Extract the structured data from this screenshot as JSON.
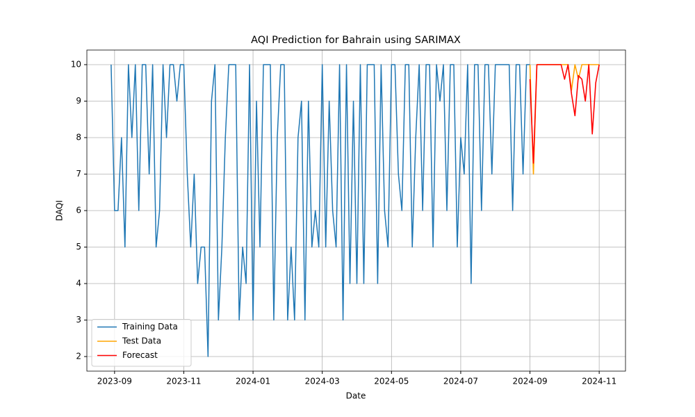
{
  "chart_data": {
    "type": "line",
    "title": "AQI Prediction for Bahrain using SARIMAX",
    "x_label": "Date",
    "y_label": "DAQI",
    "xlim": [
      -0.8,
      14.76
    ],
    "ylim": [
      1.6,
      10.4
    ],
    "xticks": [
      {
        "value": 0,
        "label": "2023-09"
      },
      {
        "value": 2,
        "label": "2023-11"
      },
      {
        "value": 4,
        "label": "2024-01"
      },
      {
        "value": 6,
        "label": "2024-03"
      },
      {
        "value": 8,
        "label": "2024-05"
      },
      {
        "value": 10,
        "label": "2024-07"
      },
      {
        "value": 12,
        "label": "2024-09"
      },
      {
        "value": 14,
        "label": "2024-11"
      }
    ],
    "yticks": [
      2,
      3,
      4,
      5,
      6,
      7,
      8,
      9,
      10
    ],
    "grid": true,
    "legend": "lower left",
    "series": [
      {
        "name": "Training Data",
        "color": "#1f77b4",
        "x": [
          -0.1,
          0,
          0.1,
          0.2,
          0.3,
          0.4,
          0.5,
          0.6,
          0.7,
          0.8,
          0.9,
          1,
          1.1,
          1.2,
          1.3,
          1.4,
          1.5,
          1.6,
          1.7,
          1.8,
          1.9,
          2,
          2.1,
          2.2,
          2.3,
          2.4,
          2.5,
          2.6,
          2.7,
          2.8,
          2.9,
          3,
          3.1,
          3.2,
          3.3,
          3.4,
          3.5,
          3.6,
          3.7,
          3.8,
          3.9,
          4,
          4.1,
          4.2,
          4.3,
          4.4,
          4.5,
          4.6,
          4.7,
          4.8,
          4.9,
          5,
          5.1,
          5.2,
          5.3,
          5.4,
          5.5,
          5.6,
          5.7,
          5.8,
          5.9,
          6,
          6.1,
          6.2,
          6.3,
          6.4,
          6.5,
          6.6,
          6.7,
          6.8,
          6.9,
          7,
          7.1,
          7.2,
          7.3,
          7.4,
          7.5,
          7.6,
          7.7,
          7.8,
          7.9,
          8,
          8.1,
          8.2,
          8.3,
          8.4,
          8.5,
          8.6,
          8.7,
          8.8,
          8.9,
          9,
          9.1,
          9.2,
          9.3,
          9.4,
          9.5,
          9.6,
          9.7,
          9.8,
          9.9,
          10,
          10.1,
          10.2,
          10.3,
          10.4,
          10.5,
          10.6,
          10.7,
          10.8,
          10.9,
          11,
          11.1,
          11.2,
          11.3,
          11.4,
          11.5,
          11.6,
          11.7,
          11.8,
          11.9,
          12
        ],
        "values": [
          10,
          6,
          6,
          8,
          5,
          10,
          8,
          10,
          6,
          10,
          10,
          7,
          10,
          5,
          6,
          10,
          8,
          10,
          10,
          9,
          10,
          10,
          7,
          5,
          7,
          4,
          5,
          5,
          2,
          9,
          10,
          3,
          5,
          8,
          10,
          10,
          10,
          3,
          5,
          4,
          10,
          3,
          9,
          5,
          10,
          10,
          10,
          3,
          8,
          10,
          10,
          3,
          5,
          3,
          8,
          9,
          3,
          9,
          5,
          6,
          5,
          10,
          5,
          9,
          6,
          5,
          10,
          3,
          10,
          4,
          9,
          4,
          10,
          4,
          10,
          10,
          10,
          4,
          10,
          6,
          5,
          10,
          10,
          7,
          6,
          10,
          10,
          5,
          8,
          10,
          6,
          10,
          10,
          5,
          10,
          9,
          10,
          6,
          10,
          10,
          5,
          8,
          7,
          10,
          4,
          10,
          10,
          6,
          10,
          10,
          7,
          10,
          10,
          10,
          10,
          10,
          6,
          10,
          10,
          7,
          10,
          10
        ]
      },
      {
        "name": "Test Data",
        "color": "#ffa500",
        "x": [
          12,
          12.1,
          12.2,
          12.3,
          12.4,
          12.5,
          12.6,
          12.7,
          12.8,
          12.9,
          13,
          13.1,
          13.2,
          13.3,
          13.4,
          13.5,
          13.6,
          13.7,
          13.8,
          13.9,
          14
        ],
        "values": [
          10,
          7,
          10,
          10,
          10,
          10,
          10,
          10,
          10,
          10,
          10,
          10,
          9.3,
          10,
          9.6,
          10,
          10,
          10,
          10,
          10,
          10
        ]
      },
      {
        "name": "Forecast",
        "color": "#ff0000",
        "x": [
          12,
          12.1,
          12.2,
          12.3,
          12.4,
          12.5,
          12.6,
          12.7,
          12.8,
          12.9,
          13,
          13.1,
          13.2,
          13.3,
          13.4,
          13.5,
          13.6,
          13.7,
          13.8,
          13.9,
          14
        ],
        "values": [
          9.6,
          7.3,
          10,
          10,
          10,
          10,
          10,
          10,
          10,
          10,
          9.6,
          10,
          9.2,
          8.6,
          9.7,
          9.6,
          9.0,
          10,
          8.1,
          9.5,
          10
        ]
      }
    ]
  }
}
